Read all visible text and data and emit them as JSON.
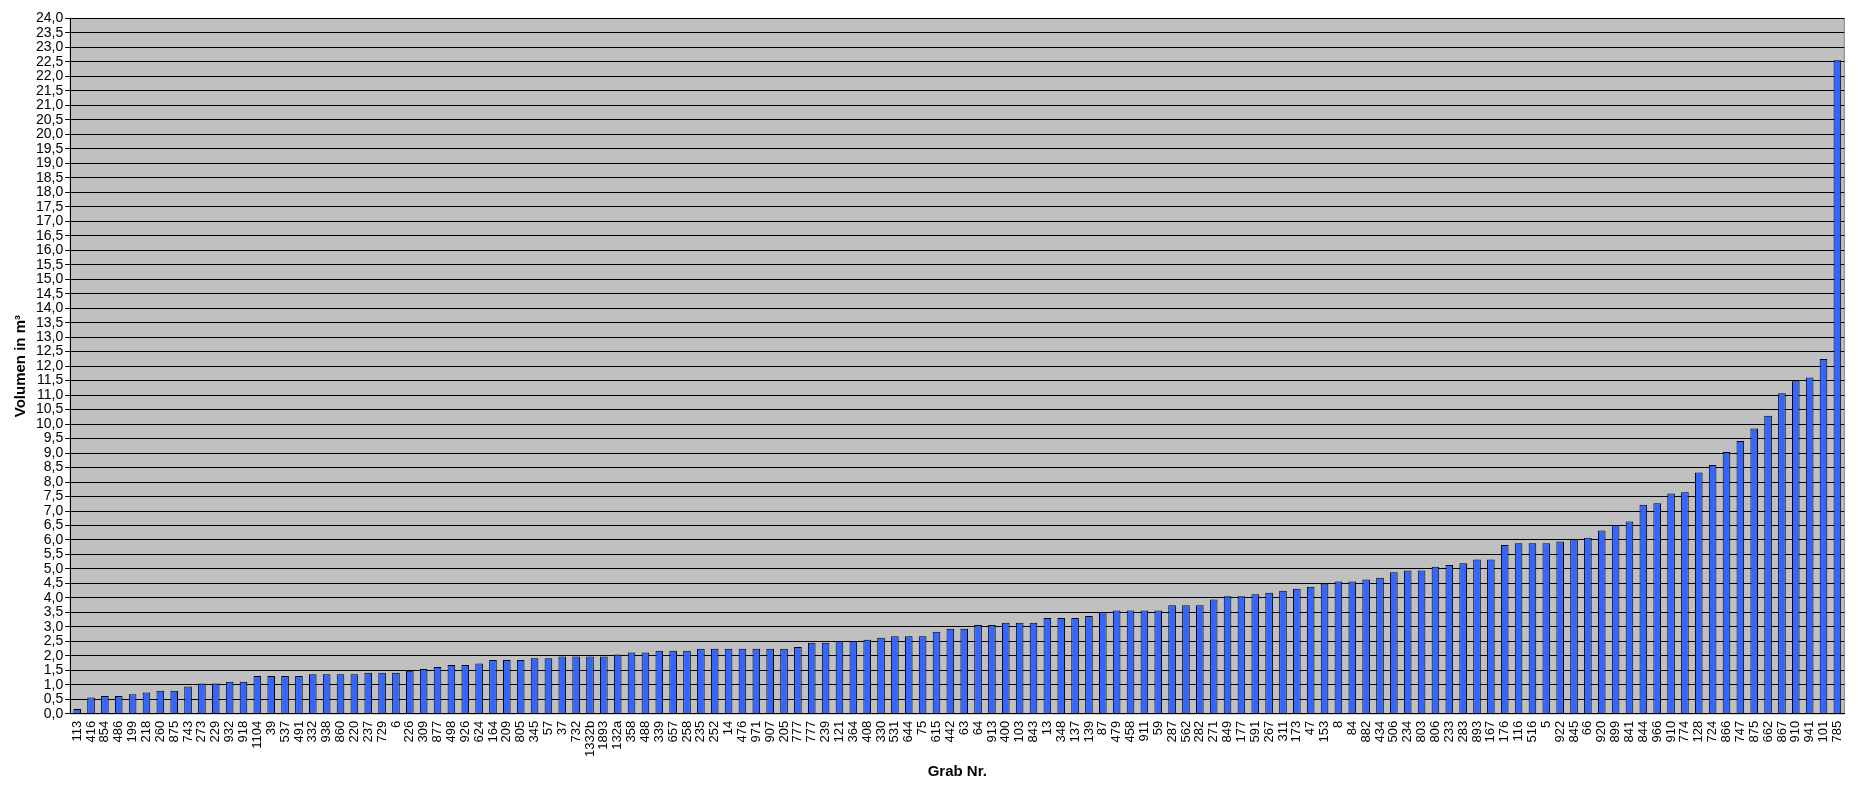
{
  "chart_data": {
    "type": "bar",
    "xlabel": "Grab Nr.",
    "ylabel": "Volumen in m³",
    "categories": [
      "113",
      "416",
      "854",
      "486",
      "199",
      "218",
      "260",
      "875",
      "743",
      "273",
      "229",
      "932",
      "918",
      "1104",
      "39",
      "537",
      "491",
      "332",
      "938",
      "860",
      "220",
      "237",
      "729",
      "6",
      "226",
      "309",
      "877",
      "498",
      "926",
      "624",
      "164",
      "209",
      "805",
      "345",
      "57",
      "37",
      "732",
      "1332b",
      "1893",
      "132a",
      "358",
      "488",
      "339",
      "657",
      "258",
      "235",
      "252",
      "14",
      "476",
      "971",
      "907",
      "205",
      "777",
      "777",
      "239",
      "121",
      "364",
      "408",
      "330",
      "531",
      "644",
      "75",
      "615",
      "442",
      "63",
      "64",
      "913",
      "400",
      "103",
      "843",
      "13",
      "348",
      "137",
      "139",
      "87",
      "479",
      "458",
      "911",
      "59",
      "287",
      "562",
      "282",
      "271",
      "849",
      "177",
      "591",
      "267",
      "311",
      "173",
      "47",
      "153",
      "8",
      "84",
      "882",
      "434",
      "506",
      "234",
      "803",
      "806",
      "233",
      "283",
      "893",
      "167",
      "176",
      "116",
      "516",
      "5",
      "922",
      "845",
      "66",
      "920",
      "899",
      "841",
      "844",
      "966",
      "910",
      "774",
      "128",
      "724",
      "866",
      "747",
      "875",
      "662",
      "867",
      "910",
      "941",
      "101",
      "785"
    ],
    "series": [
      {
        "color": "#3366ff",
        "values": [
          0.17,
          0.56,
          0.62,
          0.62,
          0.68,
          0.74,
          0.8,
          0.8,
          0.94,
          1.05,
          1.05,
          1.11,
          1.11,
          1.31,
          1.31,
          1.31,
          1.31,
          1.37,
          1.37,
          1.37,
          1.37,
          1.42,
          1.42,
          1.42,
          1.49,
          1.55,
          1.62,
          1.69,
          1.69,
          1.74,
          1.86,
          1.86,
          1.86,
          1.92,
          1.92,
          1.98,
          1.98,
          1.98,
          1.98,
          2.05,
          2.12,
          2.12,
          2.18,
          2.18,
          2.18,
          2.25,
          2.25,
          2.25,
          2.25,
          2.25,
          2.25,
          2.25,
          2.31,
          2.45,
          2.45,
          2.51,
          2.51,
          2.56,
          2.63,
          2.68,
          2.68,
          2.68,
          2.83,
          2.94,
          2.94,
          3.07,
          3.07,
          3.14,
          3.14,
          3.14,
          3.31,
          3.31,
          3.31,
          3.38,
          3.51,
          3.57,
          3.57,
          3.57,
          3.57,
          3.75,
          3.75,
          3.75,
          3.95,
          4.06,
          4.06,
          4.13,
          4.18,
          4.25,
          4.32,
          4.39,
          4.5,
          4.57,
          4.57,
          4.64,
          4.7,
          4.89,
          4.95,
          4.95,
          5.08,
          5.14,
          5.2,
          5.33,
          5.33,
          5.83,
          5.89,
          5.89,
          5.89,
          5.95,
          6.02,
          6.08,
          6.33,
          6.52,
          6.64,
          7.22,
          7.27,
          7.6,
          7.65,
          8.33,
          8.59,
          9.04,
          9.42,
          9.85,
          10.29,
          11.06,
          11.48,
          11.61,
          12.25,
          22.56
        ]
      }
    ],
    "ylim": [
      0,
      24
    ],
    "yticks": [
      {
        "value": 0,
        "label": "0,0"
      },
      {
        "value": 0.5,
        "label": "0,5"
      },
      {
        "value": 1,
        "label": "1,0"
      },
      {
        "value": 1.5,
        "label": "1,5"
      },
      {
        "value": 2,
        "label": "2,0"
      },
      {
        "value": 2.5,
        "label": "2,5"
      },
      {
        "value": 3,
        "label": "3,0"
      },
      {
        "value": 3.5,
        "label": "3,5"
      },
      {
        "value": 4,
        "label": "4,0"
      },
      {
        "value": 4.5,
        "label": "4,5"
      },
      {
        "value": 5,
        "label": "5,0"
      },
      {
        "value": 5.5,
        "label": "5,5"
      },
      {
        "value": 6,
        "label": "6,0"
      },
      {
        "value": 6.5,
        "label": "6,5"
      },
      {
        "value": 7,
        "label": "7,0"
      },
      {
        "value": 7.5,
        "label": "7,5"
      },
      {
        "value": 8,
        "label": "8,0"
      },
      {
        "value": 8.5,
        "label": "8,5"
      },
      {
        "value": 9,
        "label": "9,0"
      },
      {
        "value": 9.5,
        "label": "9,5"
      },
      {
        "value": 10,
        "label": "10,0"
      },
      {
        "value": 10.5,
        "label": "10,5"
      },
      {
        "value": 11,
        "label": "11,0"
      },
      {
        "value": 11.5,
        "label": "11,5"
      },
      {
        "value": 12,
        "label": "12,0"
      },
      {
        "value": 12.5,
        "label": "12,5"
      },
      {
        "value": 13,
        "label": "13,0"
      },
      {
        "value": 13.5,
        "label": "13,5"
      },
      {
        "value": 14,
        "label": "14,0"
      },
      {
        "value": 14.5,
        "label": "14,5"
      },
      {
        "value": 15,
        "label": "15,0"
      },
      {
        "value": 15.5,
        "label": "15,5"
      },
      {
        "value": 16,
        "label": "16,0"
      },
      {
        "value": 16.5,
        "label": "16,5"
      },
      {
        "value": 17,
        "label": "17,0"
      },
      {
        "value": 17.5,
        "label": "17,5"
      },
      {
        "value": 18,
        "label": "18,0"
      },
      {
        "value": 18.5,
        "label": "18,5"
      },
      {
        "value": 19,
        "label": "19,0"
      },
      {
        "value": 19.5,
        "label": "19,5"
      },
      {
        "value": 20,
        "label": "20,0"
      },
      {
        "value": 20.5,
        "label": "20,5"
      },
      {
        "value": 21,
        "label": "21,0"
      },
      {
        "value": 21.5,
        "label": "21,5"
      },
      {
        "value": 22,
        "label": "22,0"
      },
      {
        "value": 22.5,
        "label": "22,5"
      },
      {
        "value": 23,
        "label": "23,0"
      },
      {
        "value": 23.5,
        "label": "23,5"
      },
      {
        "value": 24,
        "label": "24,0"
      }
    ],
    "grid": "y",
    "legend": false
  }
}
